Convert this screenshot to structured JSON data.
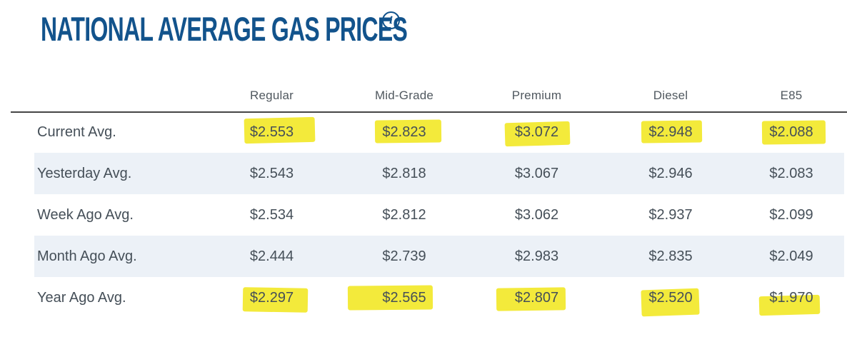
{
  "page": {
    "title": "NATIONAL AVERAGE GAS PRICES",
    "info_icon_glyph": "i"
  },
  "chart_data": {
    "type": "table",
    "title": "NATIONAL AVERAGE GAS PRICES",
    "columns": [
      "Regular",
      "Mid-Grade",
      "Premium",
      "Diesel",
      "E85"
    ],
    "rows": [
      {
        "label": "Current Avg.",
        "values": [
          "$2.553",
          "$2.823",
          "$3.072",
          "$2.948",
          "$2.088"
        ],
        "highlighted": true
      },
      {
        "label": "Yesterday Avg.",
        "values": [
          "$2.543",
          "$2.818",
          "$3.067",
          "$2.946",
          "$2.083"
        ],
        "highlighted": false
      },
      {
        "label": "Week Ago Avg.",
        "values": [
          "$2.534",
          "$2.812",
          "$3.062",
          "$2.937",
          "$2.099"
        ],
        "highlighted": false
      },
      {
        "label": "Month Ago Avg.",
        "values": [
          "$2.444",
          "$2.739",
          "$2.983",
          "$2.835",
          "$2.049"
        ],
        "highlighted": false
      },
      {
        "label": "Year Ago Avg.",
        "values": [
          "$2.297",
          "$2.565",
          "$2.807",
          "$2.520",
          "$1.970"
        ],
        "highlighted": true
      }
    ],
    "layout_hints": {
      "zebra_striped_rows": [
        1,
        3
      ],
      "highlight_style": "hand-drawn yellow marker"
    }
  },
  "colors": {
    "title_blue": "#12538c",
    "highlight_yellow": "#f3ea3b",
    "row_stripe": "#ecf1f7",
    "body_text": "#454f58",
    "header_text": "#50585f",
    "divider": "#454545"
  }
}
